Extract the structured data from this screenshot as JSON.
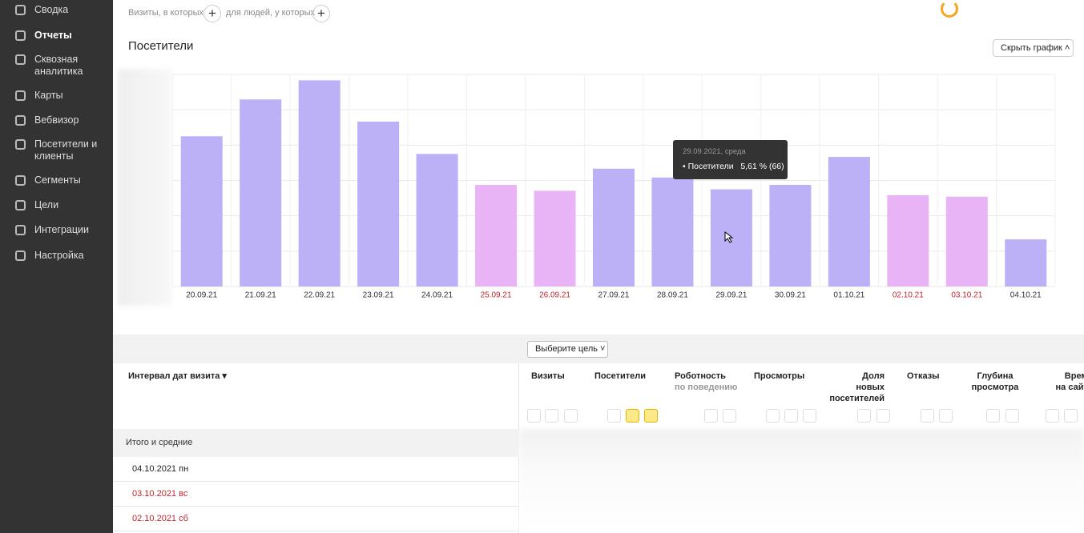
{
  "sidebar": {
    "items": [
      {
        "label": "Сводка"
      },
      {
        "label": "Отчеты"
      },
      {
        "label": "Сквозная аналитика"
      },
      {
        "label": "Карты"
      },
      {
        "label": "Вебвизор"
      },
      {
        "label": "Посетители и клиенты"
      },
      {
        "label": "Сегменты"
      },
      {
        "label": "Цели"
      },
      {
        "label": "Интеграции"
      },
      {
        "label": "Настройка"
      }
    ]
  },
  "filters": {
    "visits": "Визиты, в которых",
    "people": "для людей, у которых",
    "add": "+"
  },
  "report": {
    "title": "Посетители",
    "hide_button": "Скрыть график"
  },
  "chart_data": {
    "type": "bar",
    "categories": [
      "20.09.21",
      "21.09.21",
      "22.09.21",
      "23.09.21",
      "24.09.21",
      "25.09.21",
      "26.09.21",
      "27.09.21",
      "28.09.21",
      "29.09.21",
      "30.09.21",
      "01.10.21",
      "02.10.21",
      "03.10.21",
      "04.10.21"
    ],
    "values": [
      102,
      127,
      140,
      112,
      90,
      69,
      65,
      80,
      74,
      66,
      69,
      88,
      62,
      61,
      32
    ],
    "colors": [
      "#bcb0f7",
      "#bcb0f7",
      "#bcb0f7",
      "#bcb0f7",
      "#bcb0f7",
      "#e8b4f6",
      "#e8b4f6",
      "#bcb0f7",
      "#bcb0f7",
      "#bcb0f7",
      "#bcb0f7",
      "#bcb0f7",
      "#e8b4f6",
      "#e8b4f6",
      "#bcb0f7"
    ],
    "label_colors": [
      "#333333",
      "#333333",
      "#333333",
      "#333333",
      "#333333",
      "#c0262d",
      "#c0262d",
      "#333333",
      "#333333",
      "#333333",
      "#333333",
      "#333333",
      "#c0262d",
      "#c0262d",
      "#333333"
    ],
    "ylim": [
      0,
      144
    ],
    "grid": true,
    "tooltip": {
      "date": "29.09.2021, среда",
      "series": "Посетители",
      "share": "5,61 %",
      "count": "(66)"
    }
  },
  "table": {
    "goal_button": "Выберите цель",
    "dimension": "Интервал дат визита",
    "columns": [
      {
        "lines": [
          "Визиты"
        ]
      },
      {
        "lines": [
          "Посетители"
        ]
      },
      {
        "lines": [
          "Роботность"
        ],
        "sub": "по поведению"
      },
      {
        "lines": [
          "Просмотры"
        ]
      },
      {
        "lines": [
          "Доля",
          "новых",
          "посетителей"
        ]
      },
      {
        "lines": [
          "Отказы"
        ]
      },
      {
        "lines": [
          "Глубина",
          "просмотра"
        ]
      },
      {
        "lines": [
          "Время",
          "на сайте"
        ]
      }
    ],
    "total_label": "Итого и средние",
    "rows": [
      {
        "label": "04.10.2021 пн",
        "color": "#222222"
      },
      {
        "label": "03.10.2021 вс",
        "color": "#c0262d"
      },
      {
        "label": "02.10.2021 сб",
        "color": "#c0262d"
      }
    ]
  }
}
